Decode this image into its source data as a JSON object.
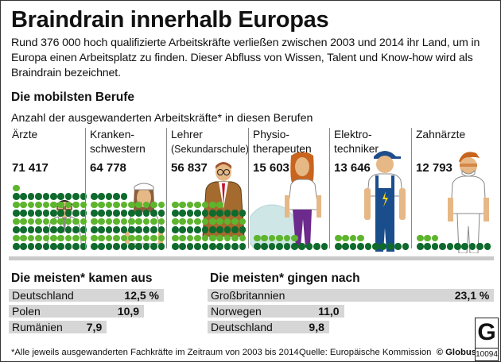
{
  "title": "Braindrain innerhalb Europas",
  "intro": "Rund 376 000 hoch qualifizierte Arbeitskräfte verließen zwischen 2003 und 2014 ihr Land, um in Europa einen Arbeitsplatz zu finden. Dieser Abfluss von Wissen, Talent und Know-how wird als Braindrain bezeichnet.",
  "professions_section": {
    "title": "Die mobilsten Berufe",
    "subtitle": "Anzahl der ausgewanderten Arbeitskräfte* in diesen Berufen"
  },
  "colors": {
    "dot_dark": "#0f6a2d",
    "dot_light": "#5db52d",
    "bar_bg": "#d6d6d6"
  },
  "chart_data": [
    {
      "type": "bar",
      "title": "Die mobilsten Berufe",
      "subtitle": "Anzahl der ausgewanderten Arbeitskräfte* in diesen Berufen",
      "unit_note": "each dot ≈ 1 000 workers",
      "categories": [
        "Ärzte",
        "Krankenschwestern",
        "Lehrer (Sekundarschule)",
        "Physiotherapeuten",
        "Elektrotechniker",
        "Zahnärzte"
      ],
      "values": [
        71417,
        64778,
        56837,
        15603,
        13646,
        12793
      ],
      "labels": [
        {
          "line1": "Ärzte",
          "line2": "",
          "value": "71 417",
          "figure": "doctor-icon",
          "dots": 71
        },
        {
          "line1": "Kranken-",
          "line2": "schwestern",
          "value": "64 778",
          "figure": "nurse-icon",
          "dots": 65
        },
        {
          "line1": "Lehrer",
          "line2": "(Sekundarschule)",
          "value": "56 837",
          "figure": "teacher-icon",
          "dots": 57
        },
        {
          "line1": "Physio-",
          "line2": "therapeuten",
          "value": "15 603",
          "figure": "physiotherapist-icon",
          "dots": 16
        },
        {
          "line1": "Elektro-",
          "line2": "techniker",
          "value": "13 646",
          "figure": "electrician-icon",
          "dots": 14
        },
        {
          "line1": "Zahnärzte",
          "line2": "",
          "value": "12 793",
          "figure": "dentist-icon",
          "dots": 13
        }
      ]
    },
    {
      "type": "bar",
      "title": "Die meisten* kamen aus",
      "unit": "%",
      "categories": [
        "Deutschland",
        "Polen",
        "Rumänien"
      ],
      "values": [
        12.5,
        10.9,
        7.9
      ],
      "value_labels": [
        "12,5 %",
        "10,9",
        "7,9"
      ]
    },
    {
      "type": "bar",
      "title": "Die meisten* gingen nach",
      "unit": "%",
      "categories": [
        "Großbritannien",
        "Norwegen",
        "Deutschland"
      ],
      "values": [
        23.1,
        11.0,
        9.8
      ],
      "value_labels": [
        "23,1 %",
        "11,0",
        "9,8"
      ]
    }
  ],
  "footnote": "*Alle jeweils ausgewanderten Fachkräfte im Zeitraum von 2003 bis 2014",
  "source": "Quelle: Europäische Kommission",
  "copyright": "© Globus",
  "logo": {
    "letter": "G",
    "number": "10094"
  }
}
